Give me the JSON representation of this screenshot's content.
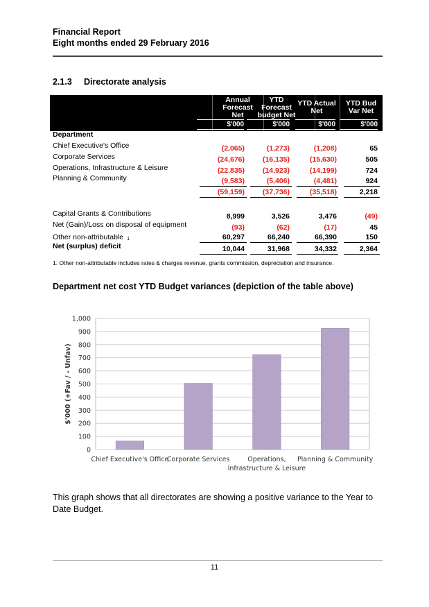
{
  "header": {
    "line1": "Financial Report",
    "line2": "Eight months ended 29 February 2016"
  },
  "section": {
    "number": "2.1.3",
    "title": "Directorate analysis"
  },
  "table": {
    "columns": [
      {
        "lines": [
          "Annual",
          "Forecast",
          "Net"
        ],
        "unit": "$'000"
      },
      {
        "lines": [
          "YTD",
          "Forecast",
          "budget Net"
        ],
        "unit": "$'000"
      },
      {
        "lines": [
          "YTD Actual",
          "Net"
        ],
        "unit": "$'000"
      },
      {
        "lines": [
          "YTD Bud",
          "Var Net"
        ],
        "unit": "$'000"
      }
    ],
    "department_heading": "Department",
    "departments": [
      {
        "label": "Chief Executive's Office",
        "values": [
          "(2,065)",
          "(1,273)",
          "(1,208)",
          "65"
        ]
      },
      {
        "label": "Corporate Services",
        "values": [
          "(24,676)",
          "(16,135)",
          "(15,630)",
          "505"
        ]
      },
      {
        "label": "Operations, Infrastructure & Leisure",
        "values": [
          "(22,835)",
          "(14,923)",
          "(14,199)",
          "724"
        ]
      },
      {
        "label": "Planning & Community",
        "values": [
          "(9,583)",
          "(5,406)",
          "(4,481)",
          "924"
        ]
      }
    ],
    "subtotal": [
      "(59,159)",
      "(37,736)",
      "(35,518)",
      "2,218"
    ],
    "other_rows": [
      {
        "label": "Capital Grants & Contributions",
        "values": [
          "8,999",
          "3,526",
          "3,476",
          "(49)"
        ]
      },
      {
        "label": "Net (Gain)/Loss on disposal of equipment",
        "values": [
          "(93)",
          "(62)",
          "(17)",
          "45"
        ]
      },
      {
        "label": "Other non-attributable",
        "footnote_ref": "1",
        "values": [
          "60,297",
          "66,240",
          "66,390",
          "150"
        ]
      },
      {
        "label": "Net (surplus) deficit",
        "values": [
          "10,044",
          "31,968",
          "34,332",
          "2,364"
        ]
      }
    ]
  },
  "footnote": "1.   Other non-attributable includes rates & charges revenue, grants commission, depreciation and insurance.",
  "chart_title": "Department net cost YTD Budget variances (depiction of the table above)",
  "chart_data": {
    "type": "bar",
    "categories": [
      "Chief Executive's Office",
      "Corporate Services",
      "Operations, Infrastructure & Leisure",
      "Planning & Community"
    ],
    "category_lines": [
      [
        "Chief Executive's Office"
      ],
      [
        "Corporate Services"
      ],
      [
        "Operations,",
        "Infrastructure & Leisure"
      ],
      [
        "Planning & Community"
      ]
    ],
    "values": [
      65,
      505,
      724,
      924
    ],
    "ylabel": "$'000 (+Fav / - Unfav)",
    "ylim": [
      0,
      1000
    ],
    "yticks": [
      0,
      100,
      200,
      300,
      400,
      500,
      600,
      700,
      800,
      900,
      1000
    ],
    "ytick_labels": [
      "0",
      "100",
      "200",
      "300",
      "400",
      "500",
      "600",
      "700",
      "800",
      "900",
      "1,000"
    ],
    "grid": true,
    "bar_color": "#b5a3c8"
  },
  "paragraph": "This graph shows that all directorates are showing a positive variance to the Year to Date Budget.",
  "page_number": "11"
}
